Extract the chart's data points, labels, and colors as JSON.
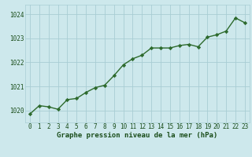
{
  "x": [
    0,
    1,
    2,
    3,
    4,
    5,
    6,
    7,
    8,
    9,
    10,
    11,
    12,
    13,
    14,
    15,
    16,
    17,
    18,
    19,
    20,
    21,
    22,
    23
  ],
  "y": [
    1019.85,
    1020.2,
    1020.15,
    1020.05,
    1020.45,
    1020.5,
    1020.75,
    1020.95,
    1021.05,
    1021.45,
    1021.9,
    1022.15,
    1022.3,
    1022.6,
    1022.6,
    1022.6,
    1022.7,
    1022.75,
    1022.65,
    1023.05,
    1023.15,
    1023.3,
    1023.85,
    1023.65
  ],
  "line_color": "#2d6a2d",
  "marker": "D",
  "marker_size": 2.2,
  "bg_color": "#cde8ec",
  "grid_color": "#a8cdd4",
  "title": "Graphe pression niveau de la mer (hPa)",
  "ylim": [
    1019.5,
    1024.4
  ],
  "yticks": [
    1020,
    1021,
    1022,
    1023,
    1024
  ],
  "xticks": [
    0,
    1,
    2,
    3,
    4,
    5,
    6,
    7,
    8,
    9,
    10,
    11,
    12,
    13,
    14,
    15,
    16,
    17,
    18,
    19,
    20,
    21,
    22,
    23
  ],
  "title_color": "#1a4d1a",
  "title_fontsize": 6.5,
  "tick_color": "#1a4d1a",
  "tick_fontsize": 5.5,
  "line_width": 1.0
}
